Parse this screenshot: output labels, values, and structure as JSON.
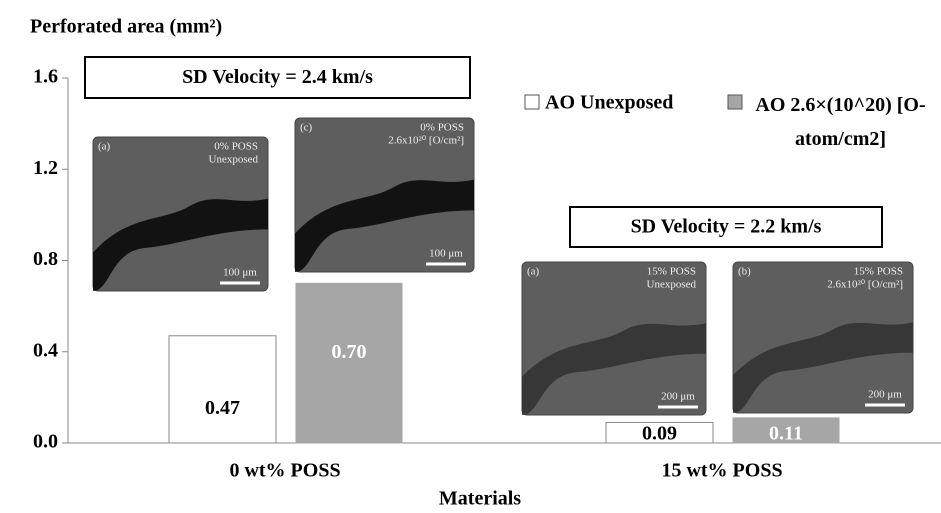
{
  "chart_data": {
    "type": "bar",
    "y_label": "Perforated area (mm²)",
    "x_label": "Materials",
    "categories": [
      "0 wt% POSS",
      "15 wt% POSS"
    ],
    "series": [
      {
        "name": "AO Unexposed",
        "color": "#ffffff",
        "values": [
          0.47,
          0.09
        ],
        "value_labels": [
          "0.47",
          "0.09"
        ]
      },
      {
        "name": "AO 2.6×(10^20) [O-atom/cm2]",
        "color": "#a6a6a6",
        "values": [
          0.7,
          0.11
        ],
        "value_labels": [
          "0.70",
          "0.11"
        ]
      }
    ],
    "ylim": [
      0,
      1.6
    ],
    "yticks": [
      {
        "value": 0,
        "label": "0.0"
      },
      {
        "value": 0.4,
        "label": "0.4"
      },
      {
        "value": 0.8,
        "label": "0.8"
      },
      {
        "value": 1.2,
        "label": "1.2"
      },
      {
        "value": 1.6,
        "label": "1.6"
      }
    ],
    "grid": false,
    "legend": "top-right",
    "annotations": [
      "SD Velocity = 2.4 km/s",
      "SD Velocity = 2.2 km/s"
    ],
    "insets": [
      {
        "panel": "(a)",
        "label": [
          "0% POSS",
          "Unexposed"
        ],
        "scale": "100 μm"
      },
      {
        "panel": "(c)",
        "label": [
          "0% POSS",
          "2.6x10²⁰ [O/cm²]"
        ],
        "scale": "100 μm"
      },
      {
        "panel": "(a)",
        "label": [
          "15% POSS",
          "Unexposed"
        ],
        "scale": "200 μm"
      },
      {
        "panel": "(b)",
        "label": [
          "15% POSS",
          "2.6x10²⁰ [O/cm²]"
        ],
        "scale": "200 μm"
      }
    ]
  }
}
